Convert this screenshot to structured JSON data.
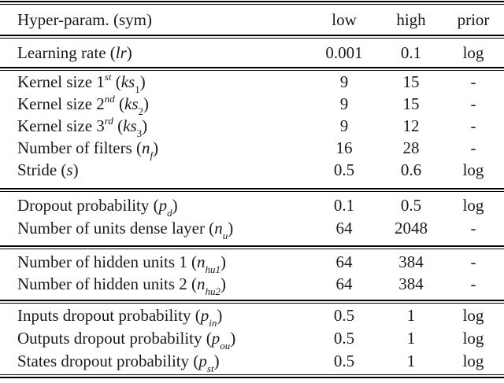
{
  "colors": {
    "background": "#ffffff",
    "text": "#1a1a1a",
    "rule": "#000000"
  },
  "table": {
    "header": {
      "hyperparam": "Hyper-param. (sym)",
      "low": "low",
      "high": "high",
      "prior": "prior"
    },
    "sections": [
      {
        "rows": [
          {
            "label": "Learning rate",
            "sup": "",
            "sym": "lr",
            "sub": "",
            "low": "0.001",
            "high": "0.1",
            "prior": "log"
          }
        ]
      },
      {
        "rows": [
          {
            "label": "Kernel size 1",
            "sup": "st",
            "sym": "ks",
            "sub": "1",
            "low": "9",
            "high": "15",
            "prior": "-"
          },
          {
            "label": "Kernel size 2",
            "sup": "nd",
            "sym": "ks",
            "sub": "2",
            "low": "9",
            "high": "15",
            "prior": "-"
          },
          {
            "label": "Kernel size 3",
            "sup": "rd",
            "sym": "ks",
            "sub": "3",
            "low": "9",
            "high": "12",
            "prior": "-"
          },
          {
            "label": "Number of filters",
            "sup": "",
            "sym": "n",
            "sub": "f",
            "low": "16",
            "high": "28",
            "prior": "-"
          },
          {
            "label": "Stride",
            "sup": "",
            "sym": "s",
            "sub": "",
            "low": "0.5",
            "high": "0.6",
            "prior": "log"
          }
        ]
      },
      {
        "rows": [
          {
            "label": "Dropout probability",
            "sup": "",
            "sym": "p",
            "sub": "d",
            "low": "0.1",
            "high": "0.5",
            "prior": "log"
          },
          {
            "label": "Number of units dense layer",
            "sup": "",
            "sym": "n",
            "sub": "u",
            "low": "64",
            "high": "2048",
            "prior": "-"
          }
        ]
      },
      {
        "rows": [
          {
            "label": "Number of hidden units 1",
            "sup": "",
            "sym": "n",
            "sub": "hu1",
            "low": "64",
            "high": "384",
            "prior": "-"
          },
          {
            "label": "Number of hidden units 2",
            "sup": "",
            "sym": "n",
            "sub": "hu2",
            "low": "64",
            "high": "384",
            "prior": "-"
          }
        ]
      },
      {
        "rows": [
          {
            "label": "Inputs dropout probability",
            "sup": "",
            "sym": "p",
            "sub": "in",
            "low": "0.5",
            "high": "1",
            "prior": "log"
          },
          {
            "label": "Outputs dropout probability",
            "sup": "",
            "sym": "p",
            "sub": "ou",
            "low": "0.5",
            "high": "1",
            "prior": "log"
          },
          {
            "label": "States dropout probability",
            "sup": "",
            "sym": "p",
            "sub": "st",
            "low": "0.5",
            "high": "1",
            "prior": "log"
          }
        ]
      }
    ]
  }
}
